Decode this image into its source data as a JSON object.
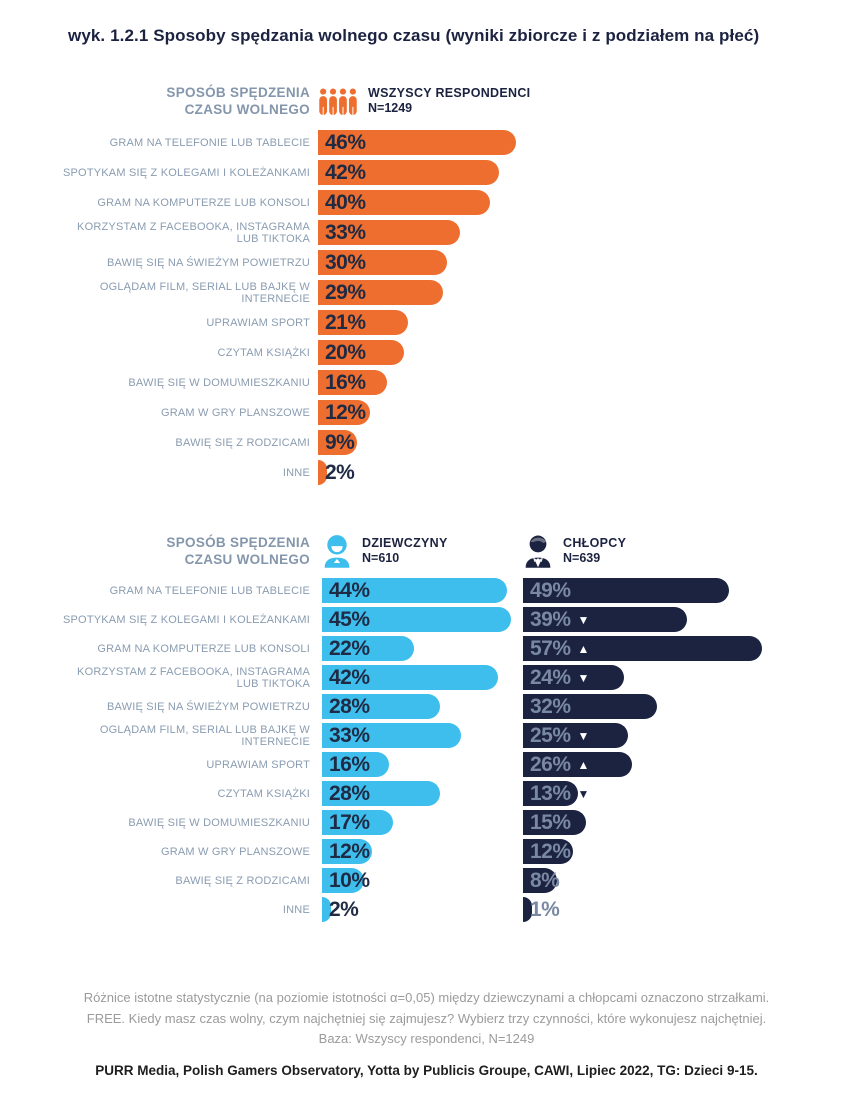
{
  "title": "wyk. 1.2.1 Sposoby spędzania wolnego czasu (wyniki zbiorcze i z podziałem na płeć)",
  "colors": {
    "orange": "#ED6E2E",
    "light_blue": "#3DBEED",
    "navy": "#1C2341",
    "value_navy": "#1F2A44",
    "boys_value": "#7A89A3",
    "label_gray": "#8A9CB1",
    "header_gray": "#8496AB",
    "footnote_gray": "#9B9B9B",
    "source_dark": "#1E1E1E"
  },
  "charts": {
    "axis_title_line1": "SPOSÓB SPĘDZENIA",
    "axis_title_line2": "CZASU WOLNEGO",
    "top": {
      "legend_label": "WSZYSCY RESPONDENCI",
      "legend_n": "N=1249"
    },
    "bottom": {
      "girls_label": "DZIEWCZYNY",
      "girls_n": "N=610",
      "boys_label": "CHŁOPCY",
      "boys_n": "N=639"
    }
  },
  "glyphs": {
    "sig_up": "▲",
    "sig_down": "▼"
  },
  "chart_data": [
    {
      "type": "bar",
      "orientation": "horizontal",
      "title": "WSZYSCY RESPONDENCI",
      "n_label": "N=1249",
      "unit": "%",
      "xlim": [
        0,
        60
      ],
      "bar_color": "#ED6E2E",
      "categories": [
        "GRAM NA TELEFONIE LUB TABLECIE",
        "SPOTYKAM SIĘ Z KOLEGAMI I KOLEŻANKAMI",
        "GRAM NA KOMPUTERZE LUB KONSOLI",
        "KORZYSTAM Z FACEBOOKA, INSTAGRAMA LUB TIKTOKA",
        "BAWIĘ SIĘ NA ŚWIEŻYM POWIETRZU",
        "OGLĄDAM FILM, SERIAL LUB BAJKĘ W INTERNECIE",
        "UPRAWIAM SPORT",
        "CZYTAM KSIĄŻKI",
        "BAWIĘ SIĘ W DOMU\\MIESZKANIU",
        "GRAM W GRY PLANSZOWE",
        "BAWIĘ SIĘ Z RODZICAMI",
        "INNE"
      ],
      "values": [
        46,
        42,
        40,
        33,
        30,
        29,
        21,
        20,
        16,
        12,
        9,
        2
      ]
    },
    {
      "type": "bar",
      "orientation": "horizontal",
      "unit": "%",
      "xlim": [
        0,
        60
      ],
      "note": "arrows mark statistically significant differences between girls and boys",
      "categories": [
        "GRAM NA TELEFONIE LUB TABLECIE",
        "SPOTYKAM SIĘ Z KOLEGAMI I KOLEŻANKAMI",
        "GRAM NA KOMPUTERZE LUB KONSOLI",
        "KORZYSTAM Z FACEBOOKA, INSTAGRAMA LUB TIKTOKA",
        "BAWIĘ SIĘ NA ŚWIEŻYM POWIETRZU",
        "OGLĄDAM FILM, SERIAL LUB BAJKĘ W INTERNECIE",
        "UPRAWIAM SPORT",
        "CZYTAM KSIĄŻKI",
        "BAWIĘ SIĘ W DOMU\\MIESZKANIU",
        "GRAM W GRY PLANSZOWE",
        "BAWIĘ SIĘ Z RODZICAMI",
        "INNE"
      ],
      "series": [
        {
          "name": "DZIEWCZYNY",
          "n_label": "N=610",
          "color": "#3DBEED",
          "values": [
            44,
            45,
            22,
            42,
            28,
            33,
            16,
            28,
            17,
            12,
            10,
            2
          ]
        },
        {
          "name": "CHŁOPCY",
          "n_label": "N=639",
          "color": "#1C2341",
          "values": [
            49,
            39,
            57,
            24,
            32,
            25,
            26,
            13,
            15,
            12,
            8,
            1
          ],
          "significance_vs_girls": [
            "",
            "down",
            "up",
            "down",
            "",
            "down",
            "up",
            "down",
            "",
            "",
            "",
            ""
          ]
        }
      ]
    }
  ],
  "footer": {
    "lines": [
      "Różnice istotne statystycznie (na poziomie istotności α=0,05) między dziewczynami a chłopcami oznaczono strzałkami.",
      "FREE. Kiedy masz czas wolny, czym najchętniej się zajmujesz? Wybierz trzy czynności, które wykonujesz najchętniej.",
      "Baza: Wszyscy respondenci, N=1249"
    ],
    "source": "PURR Media, Polish Gamers Observatory, Yotta by Publicis Groupe, CAWI, Lipiec 2022, TG: Dzieci 9-15."
  }
}
